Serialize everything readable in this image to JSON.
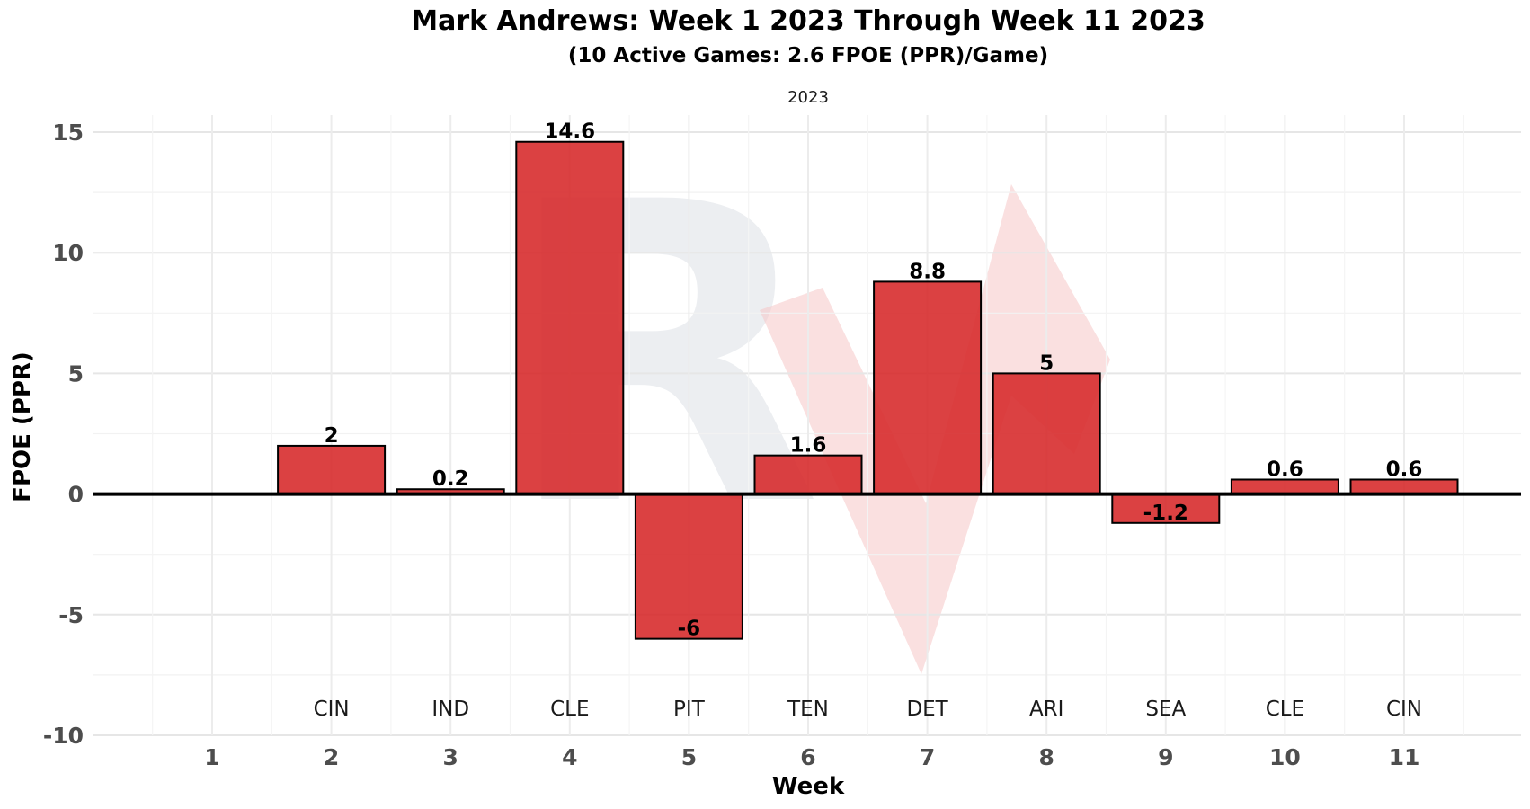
{
  "chart_data": {
    "type": "bar",
    "title": "Mark Andrews: Week 1 2023 Through Week 11 2023",
    "subtitle": "(10 Active Games: 2.6 FPOE (PPR)/Game)",
    "facet_label": "2023",
    "xlabel": "Week",
    "ylabel": "FPOE (PPR)",
    "ylim": [
      -10,
      15
    ],
    "yticks": [
      "15",
      "10",
      "5",
      "0",
      "-5",
      "-10"
    ],
    "ytick_values": [
      15,
      10,
      5,
      0,
      -5,
      -10
    ],
    "grid": true,
    "bar_color": "#d62728",
    "bar_outline": "#000000",
    "categories": [
      "1",
      "2",
      "3",
      "4",
      "5",
      "6",
      "7",
      "8",
      "9",
      "10",
      "11"
    ],
    "opponents": [
      "",
      "CIN",
      "IND",
      "CLE",
      "PIT",
      "TEN",
      "DET",
      "ARI",
      "SEA",
      "CLE",
      "CIN"
    ],
    "values": [
      null,
      2,
      0.2,
      14.6,
      -6,
      1.6,
      8.8,
      5,
      -1.2,
      0.6,
      0.6
    ],
    "value_labels": [
      "",
      "2",
      "0.2",
      "14.6",
      "-6",
      "1.6",
      "8.8",
      "5",
      "-1.2",
      "0.6",
      "0.6"
    ]
  }
}
